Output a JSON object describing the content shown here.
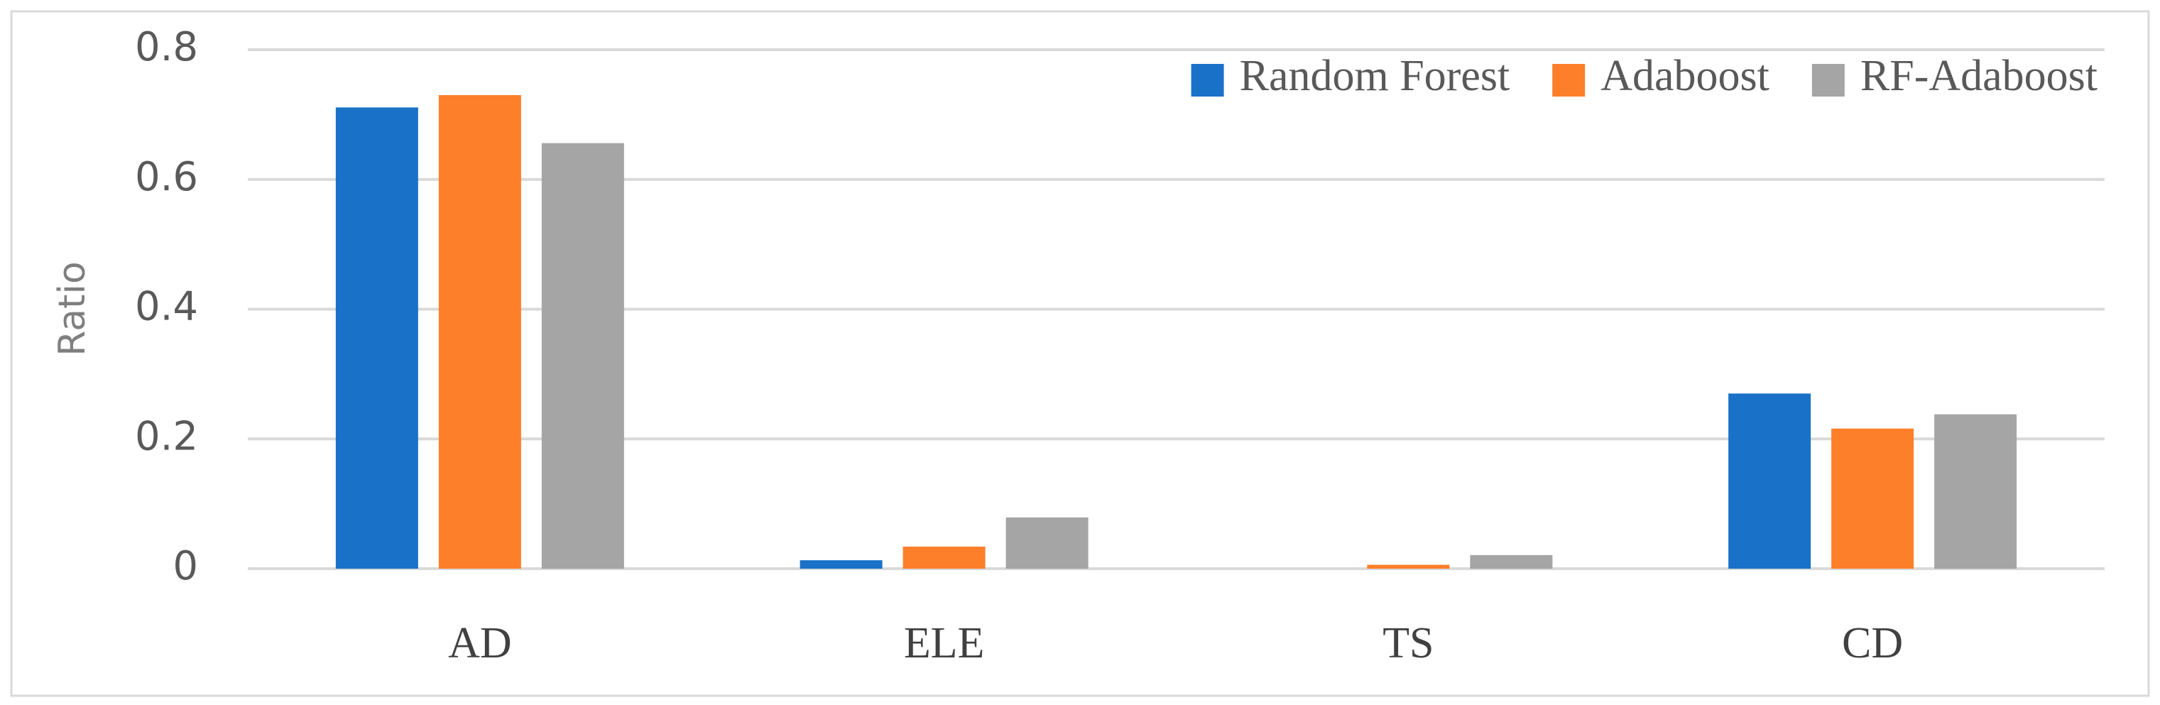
{
  "chart_data": {
    "type": "bar",
    "y_label": "Ratio",
    "categories": [
      "AD",
      "ELE",
      "TS",
      "CD"
    ],
    "series": [
      {
        "name": "Random Forest",
        "color": "#1a71c8",
        "values": [
          0.711,
          0.013,
          0,
          0.27
        ]
      },
      {
        "name": "Adaboost",
        "color": "#fd7f2a",
        "values": [
          0.73,
          0.034,
          0.006,
          0.216
        ]
      },
      {
        "name": "RF-Adaboost",
        "color": "#a5a5a5",
        "values": [
          0.656,
          0.079,
          0.021,
          0.238
        ]
      }
    ],
    "ylim": [
      0,
      0.8
    ],
    "yticks": [
      0,
      0.2,
      0.4,
      0.6,
      0.8
    ],
    "grid": true,
    "legend": "top-right"
  }
}
